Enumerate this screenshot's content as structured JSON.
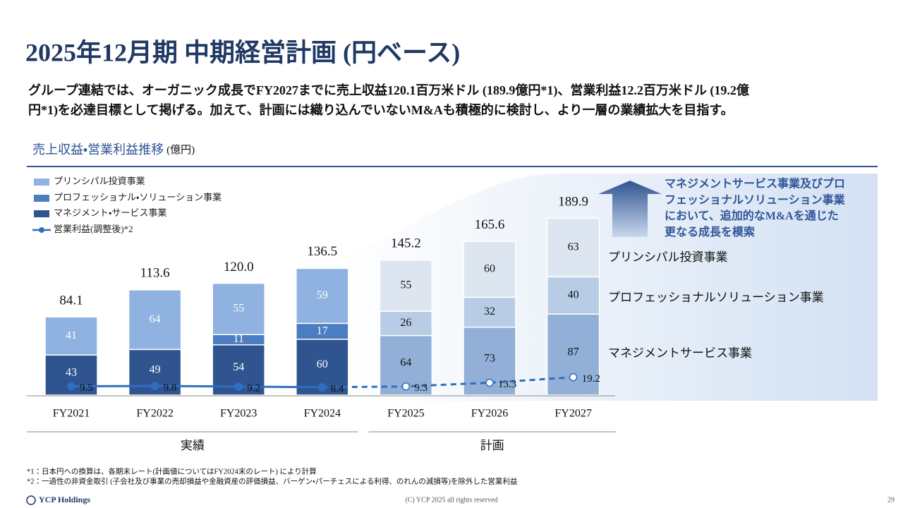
{
  "title": "2025年12月期 中期経営計画 (円ベース)",
  "description": [
    "グループ連結では、オーガニック成長でFY2027までに売上収益120.1百万米ドル (189.9億円*1)、営業利益12.2百万米ドル (19.2億",
    "円*1)を必達目標として掲げる。加えて、計画には織り込んでいないM&Aも積極的に検討し、より一層の業績拡大を目指す。"
  ],
  "chart_data": {
    "type": "stacked_bar",
    "title": "売上収益・営業利益推移",
    "unit": "(億円)",
    "categories": [
      "FY2021",
      "FY2022",
      "FY2023",
      "FY2024",
      "FY2025",
      "FY2026",
      "FY2027"
    ],
    "groups": [
      {
        "label": "実績",
        "span": 4
      },
      {
        "label": "計画",
        "span": 3
      }
    ],
    "series": [
      {
        "name": "マネジメント・サービス事業",
        "color": "#2f5490",
        "plan_color": "#91afd7",
        "values": [
          43,
          49,
          54,
          60,
          64,
          73,
          87
        ]
      },
      {
        "name": "プロフェッショナル・ソリューション事業",
        "color": "#4b7dc1",
        "plan_color": "#b8cce6",
        "values": [
          null,
          null,
          11,
          17,
          26,
          32,
          40
        ]
      },
      {
        "name": "プリンシパル投資事業",
        "color": "#8fb2e0",
        "plan_color": "#dde6f0",
        "values": [
          41,
          64,
          55,
          59,
          55,
          60,
          63
        ]
      }
    ],
    "totals": {
      "values": [
        84.1,
        113.6,
        120.0,
        136.5,
        145.2,
        165.6,
        189.9
      ],
      "value_labels": [
        "84.1",
        "113.6",
        "120.0",
        "136.5",
        "145.2",
        "165.6",
        "189.9"
      ]
    },
    "line": {
      "name": "営業利益(調整後)*2",
      "color": "#2e6fc0",
      "values": [
        9.5,
        9.8,
        9.2,
        8.4,
        9.3,
        13.3,
        19.2
      ]
    },
    "side_labels": [
      "マネジメントサービス事業",
      "プロフェッショナルソリューション事業",
      "プリンシパル投資事業"
    ],
    "callout": [
      "マネジメントサービス事業及びプロ",
      "フェッショナルソリューション事業",
      "において、追加的なM&Aを通じた",
      "更なる成長を模索"
    ]
  },
  "footnotes": [
    "*1：日本円への換算は、各期末レート(計画値についてはFY2024末のレート) により計算",
    "*2：一過性の非資金取引 (子会社及び事業の売却損益や金融資産の評価損益、バーゲン・パーチェスによる利得、のれんの減損等)を除外した営業利益"
  ],
  "footer": {
    "logo": "YCP Holdings",
    "copyright": "(C) YCP 2025 all rights reserved",
    "page": "29"
  }
}
